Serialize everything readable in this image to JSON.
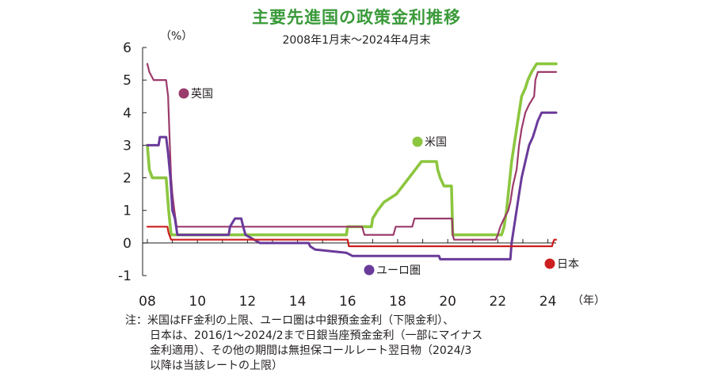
{
  "chart_data": {
    "type": "line",
    "title": "主要先進国の政策金利推移",
    "subtitle": "2008年1月末～2024年4月末",
    "y_unit": "（%）",
    "x_unit": "（年）",
    "xlim": [
      2008,
      2024.33
    ],
    "ylim": [
      -1,
      6
    ],
    "yticks": [
      "6",
      "5",
      "4",
      "3",
      "2",
      "1",
      "0",
      "-1"
    ],
    "xticks": [
      "08",
      "10",
      "12",
      "14",
      "16",
      "18",
      "20",
      "22",
      "24"
    ],
    "grid": false,
    "series": [
      {
        "name": "英国",
        "color": "#9b3b6b",
        "points": [
          [
            2008.0,
            5.5
          ],
          [
            2008.08,
            5.25
          ],
          [
            2008.25,
            5.0
          ],
          [
            2008.75,
            5.0
          ],
          [
            2008.83,
            4.5
          ],
          [
            2008.9,
            3.0
          ],
          [
            2008.95,
            2.0
          ],
          [
            2009.0,
            1.5
          ],
          [
            2009.08,
            1.0
          ],
          [
            2009.17,
            0.5
          ],
          [
            2016.58,
            0.5
          ],
          [
            2016.67,
            0.25
          ],
          [
            2017.83,
            0.25
          ],
          [
            2017.92,
            0.5
          ],
          [
            2018.58,
            0.5
          ],
          [
            2018.67,
            0.75
          ],
          [
            2020.17,
            0.75
          ],
          [
            2020.2,
            0.25
          ],
          [
            2020.25,
            0.1
          ],
          [
            2021.92,
            0.1
          ],
          [
            2022.0,
            0.25
          ],
          [
            2022.1,
            0.5
          ],
          [
            2022.25,
            0.75
          ],
          [
            2022.42,
            1.0
          ],
          [
            2022.5,
            1.25
          ],
          [
            2022.6,
            1.75
          ],
          [
            2022.75,
            2.25
          ],
          [
            2022.85,
            3.0
          ],
          [
            2022.95,
            3.5
          ],
          [
            2023.1,
            4.0
          ],
          [
            2023.25,
            4.25
          ],
          [
            2023.45,
            4.5
          ],
          [
            2023.5,
            5.0
          ],
          [
            2023.6,
            5.25
          ],
          [
            2024.33,
            5.25
          ]
        ]
      },
      {
        "name": "米国",
        "color": "#8cc63f",
        "points": [
          [
            2008.0,
            3.0
          ],
          [
            2008.08,
            2.25
          ],
          [
            2008.2,
            2.0
          ],
          [
            2008.75,
            2.0
          ],
          [
            2008.85,
            1.0
          ],
          [
            2008.95,
            0.25
          ],
          [
            2015.95,
            0.25
          ],
          [
            2016.0,
            0.5
          ],
          [
            2016.95,
            0.5
          ],
          [
            2017.0,
            0.75
          ],
          [
            2017.2,
            1.0
          ],
          [
            2017.45,
            1.25
          ],
          [
            2017.95,
            1.5
          ],
          [
            2018.2,
            1.75
          ],
          [
            2018.45,
            2.0
          ],
          [
            2018.7,
            2.25
          ],
          [
            2018.95,
            2.5
          ],
          [
            2019.55,
            2.5
          ],
          [
            2019.6,
            2.25
          ],
          [
            2019.7,
            2.0
          ],
          [
            2019.85,
            1.75
          ],
          [
            2020.15,
            1.75
          ],
          [
            2020.2,
            0.25
          ],
          [
            2022.15,
            0.25
          ],
          [
            2022.25,
            0.5
          ],
          [
            2022.35,
            1.0
          ],
          [
            2022.45,
            1.75
          ],
          [
            2022.55,
            2.5
          ],
          [
            2022.7,
            3.25
          ],
          [
            2022.85,
            4.0
          ],
          [
            2022.95,
            4.5
          ],
          [
            2023.1,
            4.75
          ],
          [
            2023.2,
            5.0
          ],
          [
            2023.35,
            5.25
          ],
          [
            2023.55,
            5.5
          ],
          [
            2024.33,
            5.5
          ]
        ]
      },
      {
        "name": "ユーロ圏",
        "color": "#6a3a9a",
        "points": [
          [
            2008.0,
            3.0
          ],
          [
            2008.45,
            3.0
          ],
          [
            2008.5,
            3.25
          ],
          [
            2008.75,
            3.25
          ],
          [
            2008.83,
            2.75
          ],
          [
            2008.92,
            2.0
          ],
          [
            2009.0,
            1.0
          ],
          [
            2009.1,
            0.75
          ],
          [
            2009.2,
            0.25
          ],
          [
            2011.25,
            0.25
          ],
          [
            2011.3,
            0.5
          ],
          [
            2011.5,
            0.75
          ],
          [
            2011.75,
            0.75
          ],
          [
            2011.83,
            0.5
          ],
          [
            2011.92,
            0.25
          ],
          [
            2012.5,
            0.0
          ],
          [
            2014.45,
            0.0
          ],
          [
            2014.5,
            -0.1
          ],
          [
            2014.7,
            -0.2
          ],
          [
            2015.95,
            -0.3
          ],
          [
            2016.2,
            -0.4
          ],
          [
            2019.65,
            -0.4
          ],
          [
            2019.7,
            -0.5
          ],
          [
            2022.5,
            -0.5
          ],
          [
            2022.55,
            0.0
          ],
          [
            2022.7,
            0.75
          ],
          [
            2022.85,
            1.5
          ],
          [
            2022.95,
            2.0
          ],
          [
            2023.1,
            2.5
          ],
          [
            2023.25,
            3.0
          ],
          [
            2023.4,
            3.25
          ],
          [
            2023.5,
            3.5
          ],
          [
            2023.6,
            3.75
          ],
          [
            2023.75,
            4.0
          ],
          [
            2024.33,
            4.0
          ]
        ]
      },
      {
        "name": "日本",
        "color": "#cc1f1f",
        "points": [
          [
            2008.0,
            0.5
          ],
          [
            2008.8,
            0.5
          ],
          [
            2008.85,
            0.3
          ],
          [
            2008.95,
            0.1
          ],
          [
            2016.0,
            0.1
          ],
          [
            2016.05,
            -0.1
          ],
          [
            2024.17,
            -0.1
          ],
          [
            2024.2,
            0.0
          ],
          [
            2024.25,
            0.1
          ],
          [
            2024.33,
            0.1
          ]
        ]
      }
    ],
    "labels": {
      "uk": "英国",
      "us": "米国",
      "euro": "ユーロ圏",
      "japan": "日本"
    }
  },
  "footnote": {
    "lines": [
      "注：米国はFF金利の上限、ユーロ圏は中銀預金金利（下限金利）、",
      "日本は、2016/1～2024/2まで日銀当座預金金利（一部にマイナス",
      "金利適用）、その他の期間は無担保コールレート翌日物（2024/3",
      "以降は当該レートの上限）"
    ]
  }
}
